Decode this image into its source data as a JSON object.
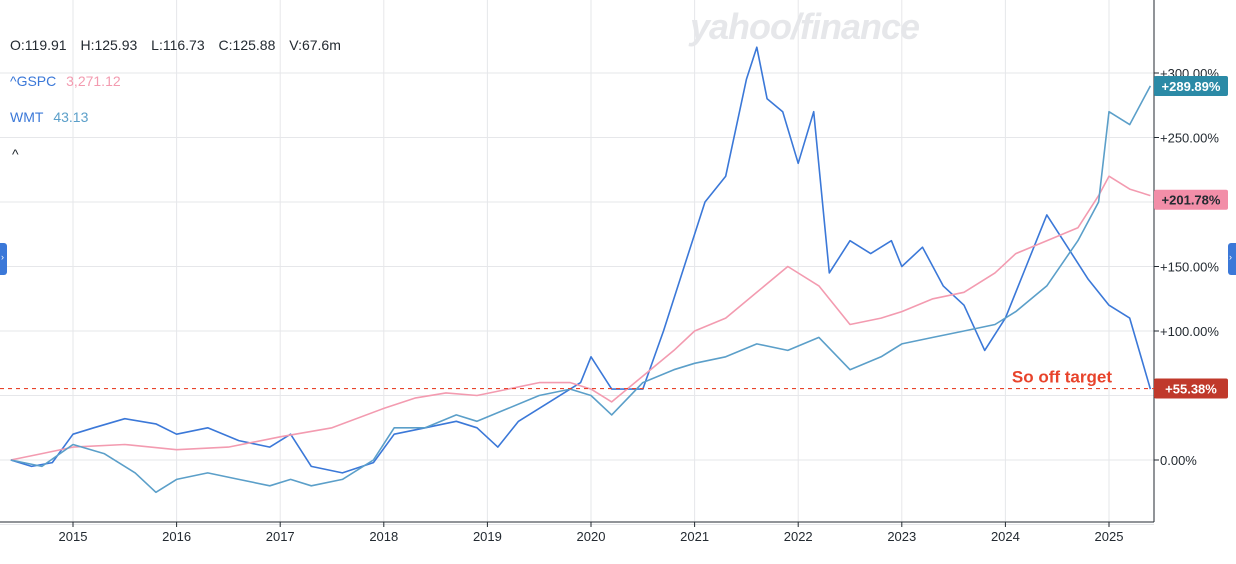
{
  "watermark": "yahoo/finance",
  "legend": {
    "ohlc": {
      "open": "O:119.91",
      "high": "H:125.93",
      "low": "L:116.73",
      "close": "C:125.88",
      "volume": "V:67.6m"
    },
    "gspc": {
      "symbol": "^GSPC",
      "value": "3,271.12",
      "color": "#f39bb0"
    },
    "wmt": {
      "symbol": "WMT",
      "value": "43.13",
      "color": "#5b9fc9"
    },
    "collapse_icon": "^"
  },
  "chart_data": {
    "type": "line",
    "x_ticks": [
      "2015",
      "2016",
      "2017",
      "2018",
      "2019",
      "2020",
      "2021",
      "2022",
      "2023",
      "2024",
      "2025"
    ],
    "y_ticks": [
      "0.00%",
      "+100.00%",
      "+150.00%",
      "+250.00%",
      "+300.00%"
    ],
    "ylim": [
      -50,
      340
    ],
    "grid": true,
    "series": [
      {
        "color": "#3b78d8",
        "x": [
          2014.4,
          2014.6,
          2014.8,
          2015.0,
          2015.2,
          2015.5,
          2015.8,
          2016.0,
          2016.3,
          2016.6,
          2016.9,
          2017.1,
          2017.3,
          2017.6,
          2017.9,
          2018.1,
          2018.4,
          2018.7,
          2018.9,
          2019.1,
          2019.3,
          2019.6,
          2019.9,
          2020.0,
          2020.2,
          2020.5,
          2020.7,
          2020.9,
          2021.1,
          2021.3,
          2021.5,
          2021.6,
          2021.7,
          2021.85,
          2022.0,
          2022.15,
          2022.3,
          2022.5,
          2022.7,
          2022.9,
          2023.0,
          2023.2,
          2023.4,
          2023.6,
          2023.8,
          2024.0,
          2024.2,
          2024.4,
          2024.6,
          2024.8,
          2025.0,
          2025.2,
          2025.4
        ],
        "values": [
          0,
          -5,
          -2,
          20,
          25,
          32,
          28,
          20,
          25,
          15,
          10,
          20,
          -5,
          -10,
          -2,
          20,
          25,
          30,
          25,
          10,
          30,
          45,
          60,
          80,
          55,
          55,
          100,
          150,
          200,
          220,
          295,
          320,
          280,
          270,
          230,
          270,
          145,
          170,
          160,
          170,
          150,
          165,
          135,
          120,
          85,
          110,
          150,
          190,
          165,
          140,
          120,
          110,
          55
        ]
      },
      {
        "color": "#f39bb0",
        "x": [
          2014.4,
          2014.7,
          2015.0,
          2015.5,
          2016.0,
          2016.5,
          2017.0,
          2017.5,
          2018.0,
          2018.3,
          2018.6,
          2018.9,
          2019.2,
          2019.5,
          2019.8,
          2020.0,
          2020.2,
          2020.5,
          2020.8,
          2021.0,
          2021.3,
          2021.6,
          2021.9,
          2022.2,
          2022.5,
          2022.8,
          2023.0,
          2023.3,
          2023.6,
          2023.9,
          2024.1,
          2024.4,
          2024.7,
          2024.9,
          2025.0,
          2025.2,
          2025.4
        ],
        "values": [
          0,
          5,
          10,
          12,
          8,
          10,
          18,
          25,
          40,
          48,
          52,
          50,
          55,
          60,
          60,
          55,
          45,
          65,
          85,
          100,
          110,
          130,
          150,
          135,
          105,
          110,
          115,
          125,
          130,
          145,
          160,
          170,
          180,
          205,
          220,
          210,
          205
        ]
      },
      {
        "color": "#5b9fc9",
        "x": [
          2014.4,
          2014.7,
          2015.0,
          2015.3,
          2015.6,
          2015.8,
          2016.0,
          2016.3,
          2016.6,
          2016.9,
          2017.1,
          2017.3,
          2017.6,
          2017.9,
          2018.1,
          2018.4,
          2018.7,
          2018.9,
          2019.2,
          2019.5,
          2019.8,
          2020.0,
          2020.2,
          2020.5,
          2020.8,
          2021.0,
          2021.3,
          2021.6,
          2021.9,
          2022.2,
          2022.5,
          2022.8,
          2023.0,
          2023.3,
          2023.6,
          2023.9,
          2024.1,
          2024.4,
          2024.7,
          2024.9,
          2025.0,
          2025.2,
          2025.4
        ],
        "values": [
          0,
          -5,
          12,
          5,
          -10,
          -25,
          -15,
          -10,
          -15,
          -20,
          -15,
          -20,
          -15,
          0,
          25,
          25,
          35,
          30,
          40,
          50,
          55,
          50,
          35,
          60,
          70,
          75,
          80,
          90,
          85,
          95,
          70,
          80,
          90,
          95,
          100,
          105,
          115,
          135,
          170,
          200,
          270,
          260,
          290
        ]
      }
    ],
    "badges": [
      {
        "text": "+289.89%",
        "value": 289.89,
        "color": "#2b8aa6"
      },
      {
        "text": "+201.78%",
        "value": 201.78,
        "color": "#f28ea8"
      },
      {
        "text": "+55.38%",
        "value": 55.38,
        "color": "#c0392b"
      }
    ],
    "annotation": {
      "text": "So off target",
      "value": 55.38,
      "color": "#e8432b"
    }
  }
}
